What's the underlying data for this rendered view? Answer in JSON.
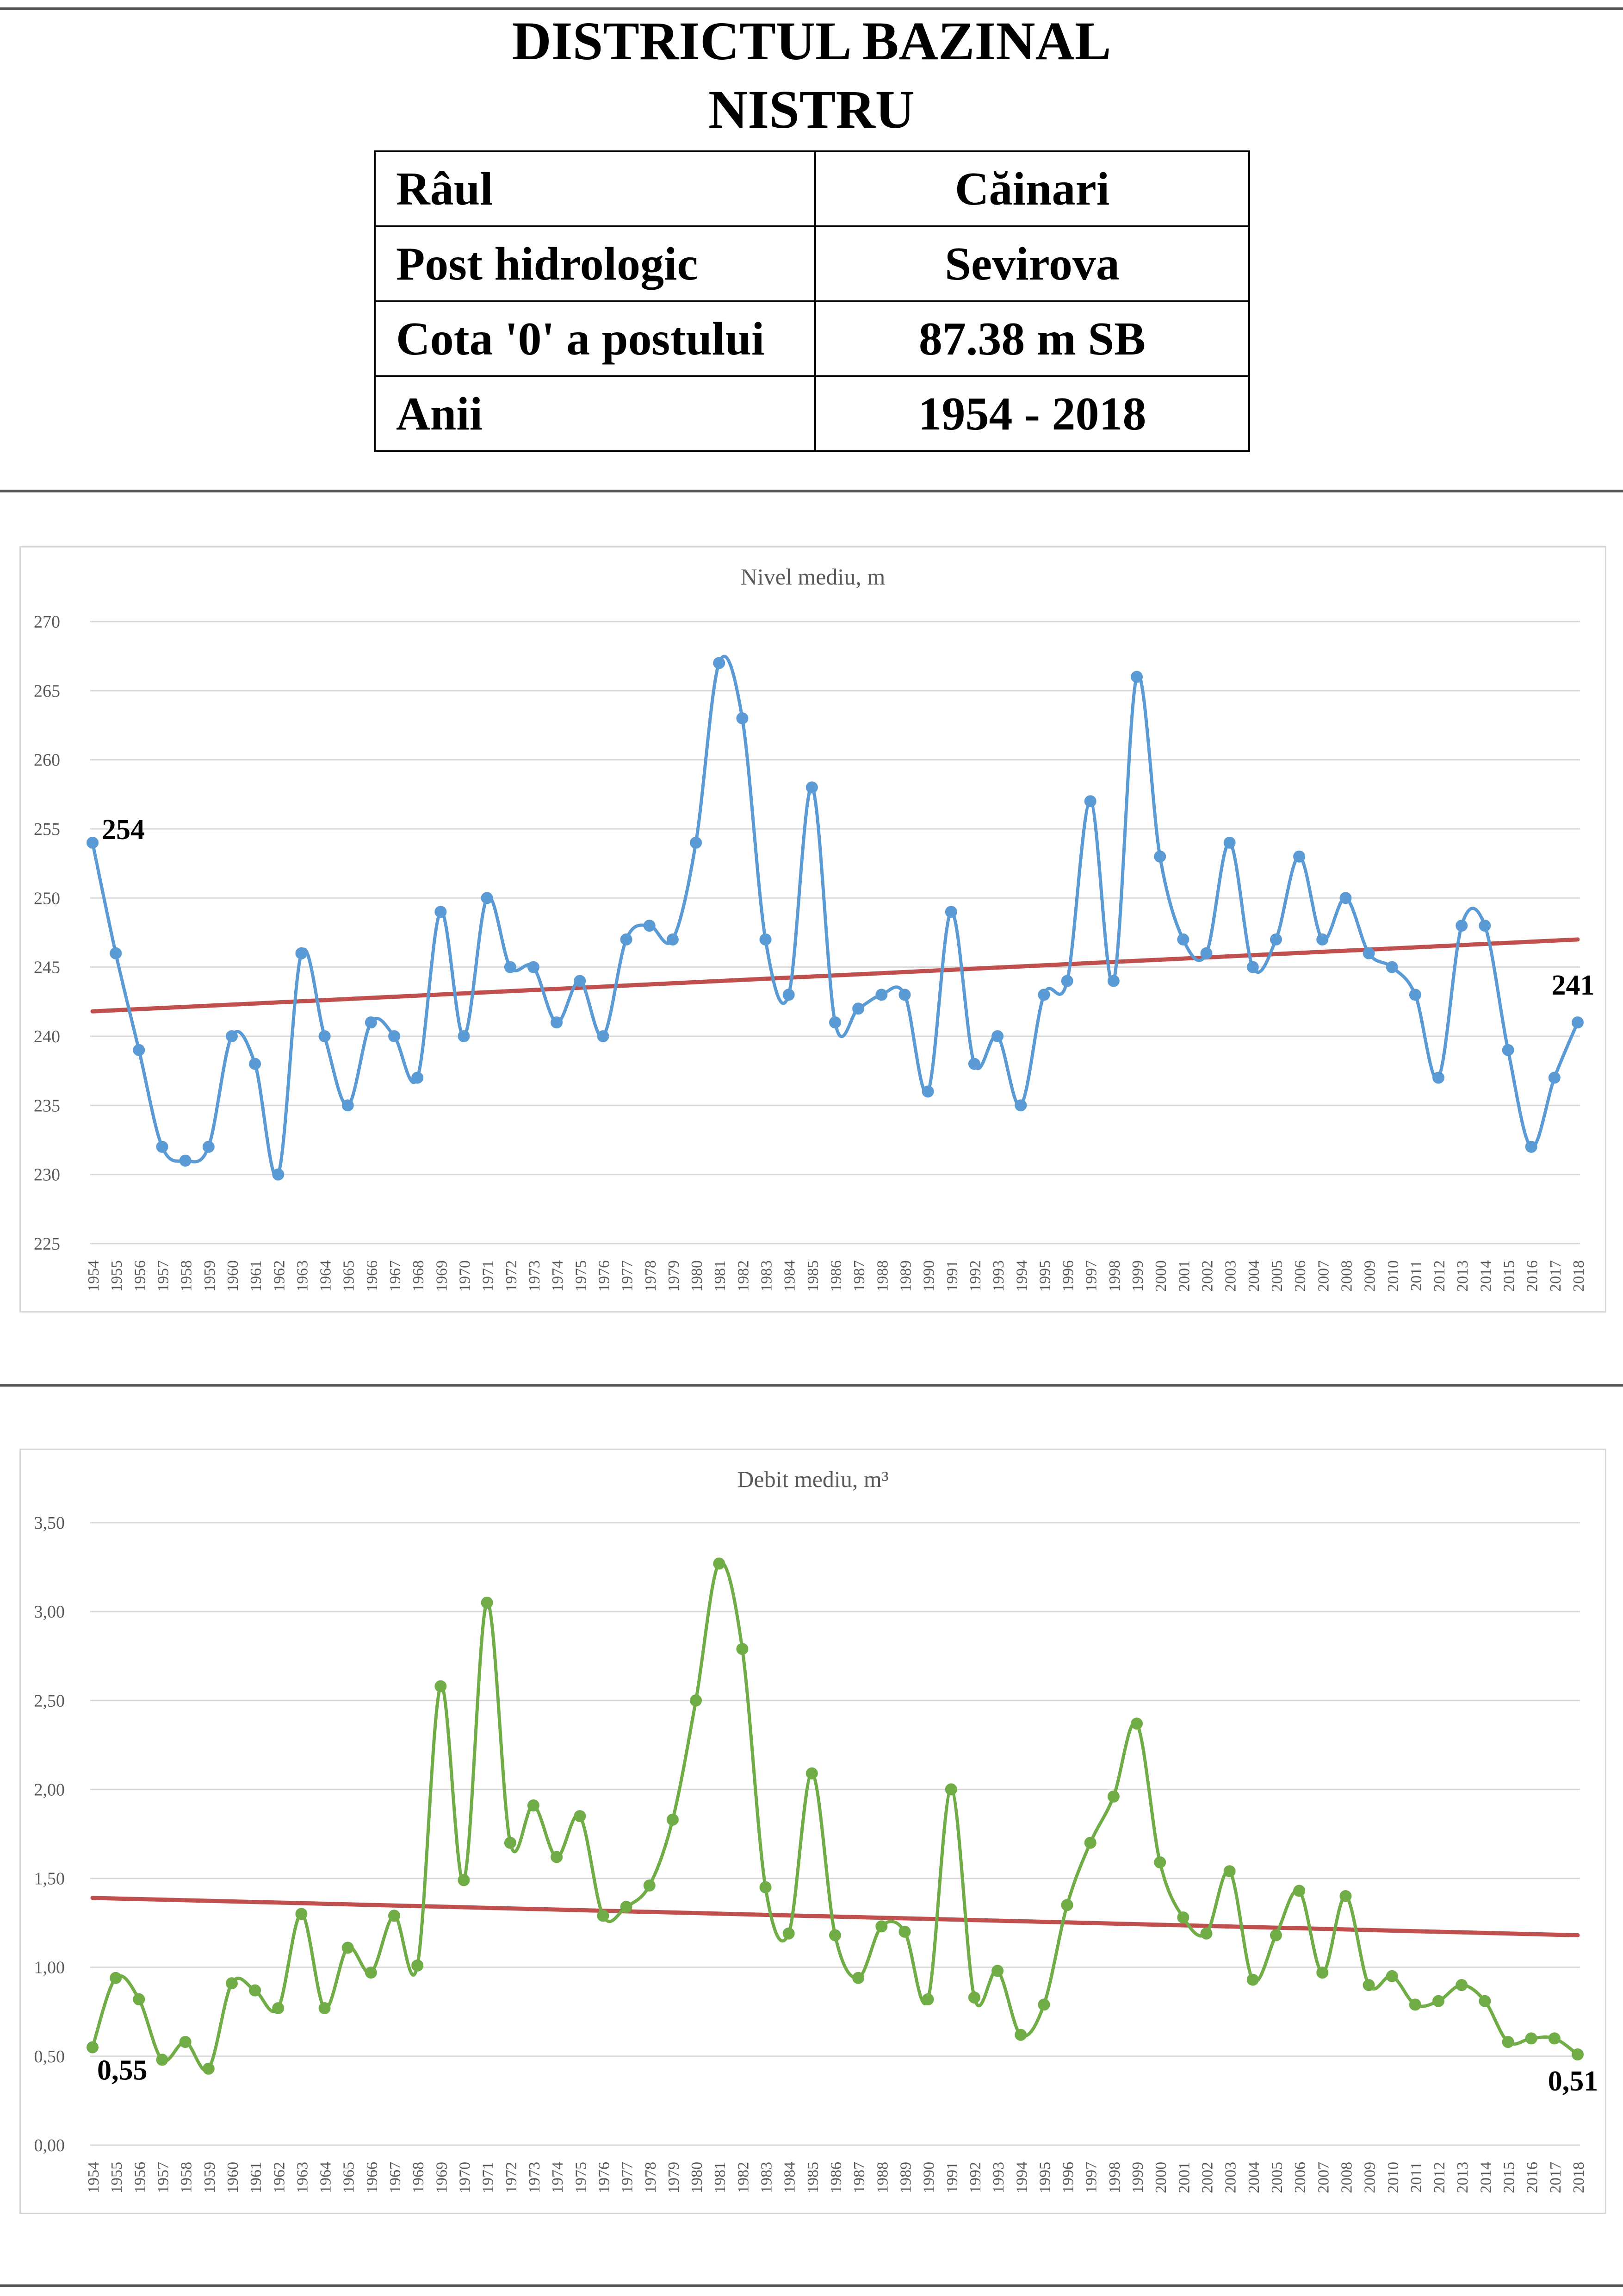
{
  "header": {
    "title_line1": "DISTRICTUL BAZINAL",
    "title_line2": "NISTRU"
  },
  "info_table": [
    {
      "label": "Râul",
      "value": "Căinari"
    },
    {
      "label": "Post hidrologic",
      "value": "Sevirova"
    },
    {
      "label": "Cota '0' a postului",
      "value": "87.38 m SB"
    },
    {
      "label": "Anii",
      "value": "1954 - 2018"
    }
  ],
  "chart_data": [
    {
      "type": "line",
      "title": "Nivel mediu, m",
      "x": [
        1954,
        1955,
        1956,
        1957,
        1958,
        1959,
        1960,
        1961,
        1962,
        1963,
        1964,
        1965,
        1966,
        1967,
        1968,
        1969,
        1970,
        1971,
        1972,
        1973,
        1974,
        1975,
        1976,
        1977,
        1978,
        1979,
        1980,
        1981,
        1982,
        1983,
        1984,
        1985,
        1986,
        1987,
        1988,
        1989,
        1990,
        1991,
        1992,
        1993,
        1994,
        1995,
        1996,
        1997,
        1998,
        1999,
        2000,
        2001,
        2002,
        2003,
        2004,
        2005,
        2006,
        2007,
        2008,
        2009,
        2010,
        2011,
        2012,
        2013,
        2014,
        2015,
        2016,
        2017,
        2018
      ],
      "series": [
        {
          "values": [
            254,
            246,
            239,
            232,
            231,
            232,
            240,
            238,
            230,
            246,
            240,
            235,
            241,
            240,
            237,
            249,
            240,
            250,
            245,
            245,
            241,
            244,
            240,
            247,
            248,
            247,
            254,
            267,
            263,
            247,
            243,
            258,
            241,
            242,
            243,
            243,
            236,
            249,
            238,
            240,
            235,
            243,
            244,
            257,
            244,
            266,
            253,
            247,
            246,
            254,
            245,
            247,
            253,
            247,
            250,
            246,
            245,
            243,
            237,
            248,
            248,
            239,
            232,
            237,
            241
          ],
          "color": "#5b9bd5"
        }
      ],
      "trend": {
        "start": 241.8,
        "end": 247.0,
        "color": "#c0504d"
      },
      "ylim": [
        225,
        270
      ],
      "yticks": [
        "225",
        "230",
        "235",
        "240",
        "245",
        "250",
        "255",
        "260",
        "265",
        "270"
      ],
      "annotations": {
        "first": "254",
        "last": "241"
      },
      "grid": true
    },
    {
      "type": "line",
      "title": "Debit mediu, m³",
      "x": [
        1954,
        1955,
        1956,
        1957,
        1958,
        1959,
        1960,
        1961,
        1962,
        1963,
        1964,
        1965,
        1966,
        1967,
        1968,
        1969,
        1970,
        1971,
        1972,
        1973,
        1974,
        1975,
        1976,
        1977,
        1978,
        1979,
        1980,
        1981,
        1982,
        1983,
        1984,
        1985,
        1986,
        1987,
        1988,
        1989,
        1990,
        1991,
        1992,
        1993,
        1994,
        1995,
        1996,
        1997,
        1998,
        1999,
        2000,
        2001,
        2002,
        2003,
        2004,
        2005,
        2006,
        2007,
        2008,
        2009,
        2010,
        2011,
        2012,
        2013,
        2014,
        2015,
        2016,
        2017,
        2018
      ],
      "series": [
        {
          "values": [
            0.55,
            0.94,
            0.82,
            0.48,
            0.58,
            0.43,
            0.91,
            0.87,
            0.77,
            1.3,
            0.77,
            1.11,
            0.97,
            1.29,
            1.01,
            2.58,
            1.49,
            3.05,
            1.7,
            1.91,
            1.62,
            1.85,
            1.29,
            1.34,
            1.46,
            1.83,
            2.5,
            3.27,
            2.79,
            1.45,
            1.19,
            2.09,
            1.18,
            0.94,
            1.23,
            1.2,
            0.82,
            2.0,
            0.83,
            0.98,
            0.62,
            0.79,
            1.35,
            1.7,
            1.96,
            2.37,
            1.59,
            1.28,
            1.19,
            1.54,
            0.93,
            1.18,
            1.43,
            0.97,
            1.4,
            0.9,
            0.95,
            0.79,
            0.81,
            0.9,
            0.81,
            0.58,
            0.6,
            0.6,
            0.51
          ],
          "color": "#70ad47"
        }
      ],
      "trend": {
        "start": 1.39,
        "end": 1.18,
        "color": "#c0504d"
      },
      "ylim": [
        0,
        3.5
      ],
      "yticks": [
        "0,00",
        "0,50",
        "1,00",
        "1,50",
        "2,00",
        "2,50",
        "3,00",
        "3,50"
      ],
      "annotations": {
        "first": "0,55",
        "last": "0,51"
      },
      "grid": true
    }
  ]
}
